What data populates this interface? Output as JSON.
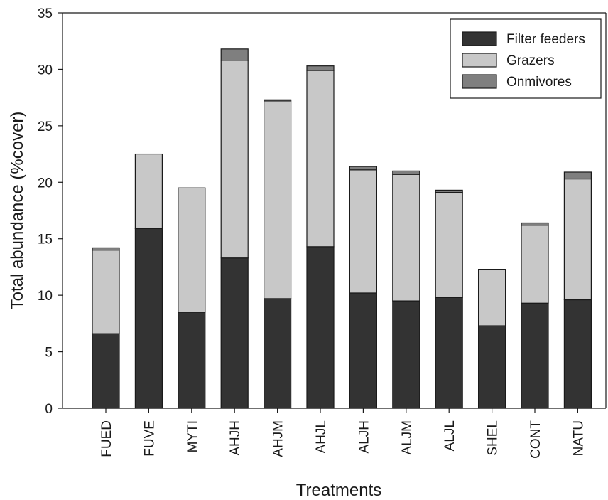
{
  "chart_data": {
    "type": "bar",
    "stacked": true,
    "categories": [
      "FUED",
      "FUVE",
      "MYTI",
      "AHJH",
      "AHJM",
      "AHJL",
      "ALJH",
      "ALJM",
      "ALJL",
      "SHEL",
      "CONT",
      "NATU"
    ],
    "series": [
      {
        "name": "Filter feeders",
        "color": "#333333",
        "values": [
          6.6,
          15.9,
          8.5,
          13.3,
          9.7,
          14.3,
          10.2,
          9.5,
          9.8,
          7.3,
          9.3,
          9.6
        ]
      },
      {
        "name": "Grazers",
        "color": "#c8c8c8",
        "values": [
          7.4,
          6.6,
          11.0,
          17.5,
          17.5,
          15.6,
          10.9,
          11.2,
          9.3,
          5.0,
          6.9,
          10.7
        ]
      },
      {
        "name": "Onmivores",
        "color": "#7f7f7f",
        "values": [
          0.2,
          0.0,
          0.0,
          1.0,
          0.1,
          0.4,
          0.3,
          0.3,
          0.2,
          0.0,
          0.2,
          0.6
        ]
      }
    ],
    "xlabel": "Treatments",
    "ylabel": "Total abundance (%cover)",
    "ylim": [
      0,
      35
    ],
    "yticks": [
      0,
      5,
      10,
      15,
      20,
      25,
      30,
      35
    ],
    "grid": false,
    "legend": "top-right"
  }
}
